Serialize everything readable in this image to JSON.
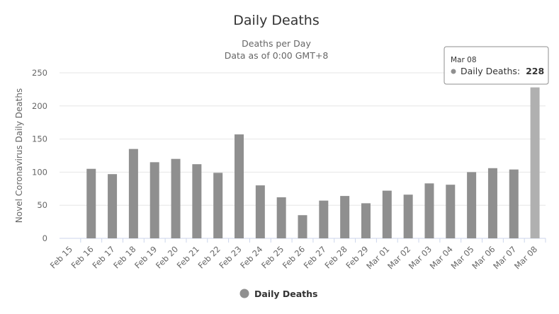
{
  "chart_data": {
    "type": "bar",
    "title": "Daily Deaths",
    "subtitle_line1": "Deaths per Day",
    "subtitle_line2": "Data as of 0:00 GMT+8",
    "ylabel": "Novel Coronavirus Daily Deaths",
    "xlabel": "",
    "ylim": [
      0,
      250
    ],
    "yticks": [
      0,
      50,
      100,
      150,
      200,
      250
    ],
    "grid": true,
    "legend_position": "bottom-center",
    "categories": [
      "Feb 15",
      "Feb 16",
      "Feb 17",
      "Feb 18",
      "Feb 19",
      "Feb 20",
      "Feb 21",
      "Feb 22",
      "Feb 23",
      "Feb 24",
      "Feb 25",
      "Feb 26",
      "Feb 27",
      "Feb 28",
      "Feb 29",
      "Mar 01",
      "Mar 02",
      "Mar 03",
      "Mar 04",
      "Mar 05",
      "Mar 06",
      "Mar 07",
      "Mar 08"
    ],
    "series": [
      {
        "name": "Daily Deaths",
        "values": [
          0,
          105,
          97,
          135,
          115,
          120,
          112,
          99,
          157,
          80,
          62,
          35,
          57,
          64,
          53,
          72,
          66,
          83,
          81,
          100,
          106,
          104,
          228
        ]
      }
    ],
    "tooltip": {
      "category": "Mar 08",
      "series_label": "Daily Deaths:",
      "value": "228"
    }
  },
  "colors": {
    "bar": "#8f8f8f",
    "bar_highlight": "#b0b0b0",
    "grid": "#e6e6e6",
    "axis": "#ccd6eb",
    "legend_marker": "#8f8f8f",
    "tooltip_border": "#8f8f8f",
    "tooltip_marker": "#8f8f8f"
  }
}
